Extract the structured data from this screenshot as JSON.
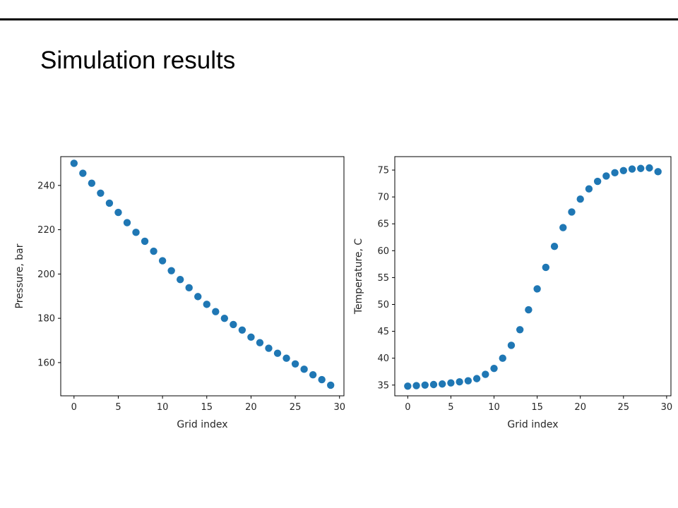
{
  "slide": {
    "title": "Simulation results"
  },
  "colors": {
    "marker": "#1f77b4",
    "axis": "#000000",
    "rule": "#000000"
  },
  "chart_data": [
    {
      "type": "scatter",
      "title": "",
      "xlabel": "Grid index",
      "ylabel": "Pressure, bar",
      "xlim": [
        -1.5,
        30.5
      ],
      "ylim": [
        145,
        253
      ],
      "xticks": [
        0,
        5,
        10,
        15,
        20,
        25,
        30
      ],
      "yticks": [
        160,
        180,
        200,
        220,
        240
      ],
      "grid": false,
      "x": [
        0,
        1,
        2,
        3,
        4,
        5,
        6,
        7,
        8,
        9,
        10,
        11,
        12,
        13,
        14,
        15,
        16,
        17,
        18,
        19,
        20,
        21,
        22,
        23,
        24,
        25,
        26,
        27,
        28,
        29
      ],
      "y": [
        250,
        245.5,
        241,
        236.5,
        232,
        227.8,
        223.2,
        218.8,
        214.8,
        210.3,
        206,
        201.5,
        197.5,
        193.8,
        189.8,
        186.3,
        183,
        180,
        177.2,
        174.7,
        171.5,
        169,
        166.5,
        164.2,
        162,
        159.4,
        157,
        154.5,
        152.3,
        149.8
      ]
    },
    {
      "type": "scatter",
      "title": "",
      "xlabel": "Grid index",
      "ylabel": "Temperature, C",
      "xlim": [
        -1.5,
        30.5
      ],
      "ylim": [
        33,
        77.5
      ],
      "xticks": [
        0,
        5,
        10,
        15,
        20,
        25,
        30
      ],
      "yticks": [
        35,
        40,
        45,
        50,
        55,
        60,
        65,
        70,
        75
      ],
      "grid": false,
      "x": [
        0,
        1,
        2,
        3,
        4,
        5,
        6,
        7,
        8,
        9,
        10,
        11,
        12,
        13,
        14,
        15,
        16,
        17,
        18,
        19,
        20,
        21,
        22,
        23,
        24,
        25,
        26,
        27,
        28,
        29
      ],
      "y": [
        34.8,
        34.9,
        35,
        35.1,
        35.2,
        35.4,
        35.6,
        35.8,
        36.2,
        37,
        38.1,
        40,
        42.4,
        45.3,
        49,
        52.9,
        56.9,
        60.8,
        64.3,
        67.2,
        69.6,
        71.5,
        72.9,
        73.9,
        74.5,
        74.9,
        75.2,
        75.3,
        75.4,
        74.7
      ]
    }
  ]
}
